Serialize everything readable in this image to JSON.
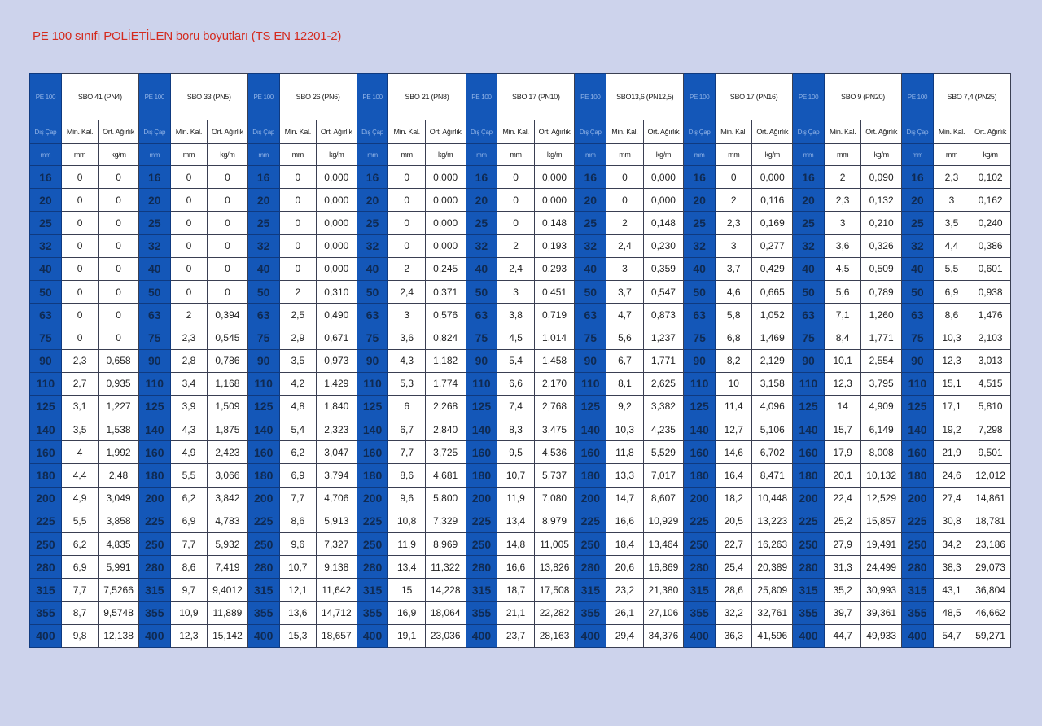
{
  "title": "PE 100 sınıfı POLİETİLEN boru boyutları (TS EN 12201-2)",
  "block_label": "PE 100",
  "col_outer_label": "Dış Çap",
  "col_min_label": "Min. Kal.",
  "col_weight_label": "Ort. Ağırlık",
  "unit_diameter": "mm",
  "unit_thickness": "mm",
  "unit_weight": "kg/m",
  "accent_color": "#1457b8",
  "title_color": "#d42a1e",
  "series": [
    {
      "name": "SBO 41 (PN4)"
    },
    {
      "name": "SBO 33 (PN5)"
    },
    {
      "name": "SBO 26 (PN6)"
    },
    {
      "name": "SBO 21 (PN8)"
    },
    {
      "name": "SBO 17 (PN10)"
    },
    {
      "name": "SBO13,6 (PN12,5)"
    },
    {
      "name": "SBO 17 (PN16)"
    },
    {
      "name": "SBO 9 (PN20)"
    },
    {
      "name": "SBO 7,4 (PN25)"
    }
  ],
  "rows": [
    {
      "d": "16",
      "v": [
        [
          "0",
          "0"
        ],
        [
          "0",
          "0"
        ],
        [
          "0",
          "0,000"
        ],
        [
          "0",
          "0,000"
        ],
        [
          "0",
          "0,000"
        ],
        [
          "0",
          "0,000"
        ],
        [
          "0",
          "0,000"
        ],
        [
          "2",
          "0,090"
        ],
        [
          "2,3",
          "0,102"
        ]
      ]
    },
    {
      "d": "20",
      "v": [
        [
          "0",
          "0"
        ],
        [
          "0",
          "0"
        ],
        [
          "0",
          "0,000"
        ],
        [
          "0",
          "0,000"
        ],
        [
          "0",
          "0,000"
        ],
        [
          "0",
          "0,000"
        ],
        [
          "2",
          "0,116"
        ],
        [
          "2,3",
          "0,132"
        ],
        [
          "3",
          "0,162"
        ]
      ]
    },
    {
      "d": "25",
      "v": [
        [
          "0",
          "0"
        ],
        [
          "0",
          "0"
        ],
        [
          "0",
          "0,000"
        ],
        [
          "0",
          "0,000"
        ],
        [
          "0",
          "0,148"
        ],
        [
          "2",
          "0,148"
        ],
        [
          "2,3",
          "0,169"
        ],
        [
          "3",
          "0,210"
        ],
        [
          "3,5",
          "0,240"
        ]
      ]
    },
    {
      "d": "32",
      "v": [
        [
          "0",
          "0"
        ],
        [
          "0",
          "0"
        ],
        [
          "0",
          "0,000"
        ],
        [
          "0",
          "0,000"
        ],
        [
          "2",
          "0,193"
        ],
        [
          "2,4",
          "0,230"
        ],
        [
          "3",
          "0,277"
        ],
        [
          "3,6",
          "0,326"
        ],
        [
          "4,4",
          "0,386"
        ]
      ]
    },
    {
      "d": "40",
      "v": [
        [
          "0",
          "0"
        ],
        [
          "0",
          "0"
        ],
        [
          "0",
          "0,000"
        ],
        [
          "2",
          "0,245"
        ],
        [
          "2,4",
          "0,293"
        ],
        [
          "3",
          "0,359"
        ],
        [
          "3,7",
          "0,429"
        ],
        [
          "4,5",
          "0,509"
        ],
        [
          "5,5",
          "0,601"
        ]
      ]
    },
    {
      "d": "50",
      "v": [
        [
          "0",
          "0"
        ],
        [
          "0",
          "0"
        ],
        [
          "2",
          "0,310"
        ],
        [
          "2,4",
          "0,371"
        ],
        [
          "3",
          "0,451"
        ],
        [
          "3,7",
          "0,547"
        ],
        [
          "4,6",
          "0,665"
        ],
        [
          "5,6",
          "0,789"
        ],
        [
          "6,9",
          "0,938"
        ]
      ]
    },
    {
      "d": "63",
      "v": [
        [
          "0",
          "0"
        ],
        [
          "2",
          "0,394"
        ],
        [
          "2,5",
          "0,490"
        ],
        [
          "3",
          "0,576"
        ],
        [
          "3,8",
          "0,719"
        ],
        [
          "4,7",
          "0,873"
        ],
        [
          "5,8",
          "1,052"
        ],
        [
          "7,1",
          "1,260"
        ],
        [
          "8,6",
          "1,476"
        ]
      ]
    },
    {
      "d": "75",
      "v": [
        [
          "0",
          "0"
        ],
        [
          "2,3",
          "0,545"
        ],
        [
          "2,9",
          "0,671"
        ],
        [
          "3,6",
          "0,824"
        ],
        [
          "4,5",
          "1,014"
        ],
        [
          "5,6",
          "1,237"
        ],
        [
          "6,8",
          "1,469"
        ],
        [
          "8,4",
          "1,771"
        ],
        [
          "10,3",
          "2,103"
        ]
      ]
    },
    {
      "d": "90",
      "v": [
        [
          "2,3",
          "0,658"
        ],
        [
          "2,8",
          "0,786"
        ],
        [
          "3,5",
          "0,973"
        ],
        [
          "4,3",
          "1,182"
        ],
        [
          "5,4",
          "1,458"
        ],
        [
          "6,7",
          "1,771"
        ],
        [
          "8,2",
          "2,129"
        ],
        [
          "10,1",
          "2,554"
        ],
        [
          "12,3",
          "3,013"
        ]
      ]
    },
    {
      "d": "110",
      "v": [
        [
          "2,7",
          "0,935"
        ],
        [
          "3,4",
          "1,168"
        ],
        [
          "4,2",
          "1,429"
        ],
        [
          "5,3",
          "1,774"
        ],
        [
          "6,6",
          "2,170"
        ],
        [
          "8,1",
          "2,625"
        ],
        [
          "10",
          "3,158"
        ],
        [
          "12,3",
          "3,795"
        ],
        [
          "15,1",
          "4,515"
        ]
      ]
    },
    {
      "d": "125",
      "v": [
        [
          "3,1",
          "1,227"
        ],
        [
          "3,9",
          "1,509"
        ],
        [
          "4,8",
          "1,840"
        ],
        [
          "6",
          "2,268"
        ],
        [
          "7,4",
          "2,768"
        ],
        [
          "9,2",
          "3,382"
        ],
        [
          "11,4",
          "4,096"
        ],
        [
          "14",
          "4,909"
        ],
        [
          "17,1",
          "5,810"
        ]
      ]
    },
    {
      "d": "140",
      "v": [
        [
          "3,5",
          "1,538"
        ],
        [
          "4,3",
          "1,875"
        ],
        [
          "5,4",
          "2,323"
        ],
        [
          "6,7",
          "2,840"
        ],
        [
          "8,3",
          "3,475"
        ],
        [
          "10,3",
          "4,235"
        ],
        [
          "12,7",
          "5,106"
        ],
        [
          "15,7",
          "6,149"
        ],
        [
          "19,2",
          "7,298"
        ]
      ]
    },
    {
      "d": "160",
      "v": [
        [
          "4",
          "1,992"
        ],
        [
          "4,9",
          "2,423"
        ],
        [
          "6,2",
          "3,047"
        ],
        [
          "7,7",
          "3,725"
        ],
        [
          "9,5",
          "4,536"
        ],
        [
          "11,8",
          "5,529"
        ],
        [
          "14,6",
          "6,702"
        ],
        [
          "17,9",
          "8,008"
        ],
        [
          "21,9",
          "9,501"
        ]
      ]
    },
    {
      "d": "180",
      "v": [
        [
          "4,4",
          "2,48"
        ],
        [
          "5,5",
          "3,066"
        ],
        [
          "6,9",
          "3,794"
        ],
        [
          "8,6",
          "4,681"
        ],
        [
          "10,7",
          "5,737"
        ],
        [
          "13,3",
          "7,017"
        ],
        [
          "16,4",
          "8,471"
        ],
        [
          "20,1",
          "10,132"
        ],
        [
          "24,6",
          "12,012"
        ]
      ]
    },
    {
      "d": "200",
      "v": [
        [
          "4,9",
          "3,049"
        ],
        [
          "6,2",
          "3,842"
        ],
        [
          "7,7",
          "4,706"
        ],
        [
          "9,6",
          "5,800"
        ],
        [
          "11,9",
          "7,080"
        ],
        [
          "14,7",
          "8,607"
        ],
        [
          "18,2",
          "10,448"
        ],
        [
          "22,4",
          "12,529"
        ],
        [
          "27,4",
          "14,861"
        ]
      ]
    },
    {
      "d": "225",
      "v": [
        [
          "5,5",
          "3,858"
        ],
        [
          "6,9",
          "4,783"
        ],
        [
          "8,6",
          "5,913"
        ],
        [
          "10,8",
          "7,329"
        ],
        [
          "13,4",
          "8,979"
        ],
        [
          "16,6",
          "10,929"
        ],
        [
          "20,5",
          "13,223"
        ],
        [
          "25,2",
          "15,857"
        ],
        [
          "30,8",
          "18,781"
        ]
      ]
    },
    {
      "d": "250",
      "v": [
        [
          "6,2",
          "4,835"
        ],
        [
          "7,7",
          "5,932"
        ],
        [
          "9,6",
          "7,327"
        ],
        [
          "11,9",
          "8,969"
        ],
        [
          "14,8",
          "11,005"
        ],
        [
          "18,4",
          "13,464"
        ],
        [
          "22,7",
          "16,263"
        ],
        [
          "27,9",
          "19,491"
        ],
        [
          "34,2",
          "23,186"
        ]
      ]
    },
    {
      "d": "280",
      "v": [
        [
          "6,9",
          "5,991"
        ],
        [
          "8,6",
          "7,419"
        ],
        [
          "10,7",
          "9,138"
        ],
        [
          "13,4",
          "11,322"
        ],
        [
          "16,6",
          "13,826"
        ],
        [
          "20,6",
          "16,869"
        ],
        [
          "25,4",
          "20,389"
        ],
        [
          "31,3",
          "24,499"
        ],
        [
          "38,3",
          "29,073"
        ]
      ]
    },
    {
      "d": "315",
      "v": [
        [
          "7,7",
          "7,5266"
        ],
        [
          "9,7",
          "9,4012"
        ],
        [
          "12,1",
          "11,642"
        ],
        [
          "15",
          "14,228"
        ],
        [
          "18,7",
          "17,508"
        ],
        [
          "23,2",
          "21,380"
        ],
        [
          "28,6",
          "25,809"
        ],
        [
          "35,2",
          "30,993"
        ],
        [
          "43,1",
          "36,804"
        ]
      ]
    },
    {
      "d": "355",
      "v": [
        [
          "8,7",
          "9,5748"
        ],
        [
          "10,9",
          "11,889"
        ],
        [
          "13,6",
          "14,712"
        ],
        [
          "16,9",
          "18,064"
        ],
        [
          "21,1",
          "22,282"
        ],
        [
          "26,1",
          "27,106"
        ],
        [
          "32,2",
          "32,761"
        ],
        [
          "39,7",
          "39,361"
        ],
        [
          "48,5",
          "46,662"
        ]
      ]
    },
    {
      "d": "400",
      "v": [
        [
          "9,8",
          "12,138"
        ],
        [
          "12,3",
          "15,142"
        ],
        [
          "15,3",
          "18,657"
        ],
        [
          "19,1",
          "23,036"
        ],
        [
          "23,7",
          "28,163"
        ],
        [
          "29,4",
          "34,376"
        ],
        [
          "36,3",
          "41,596"
        ],
        [
          "44,7",
          "49,933"
        ],
        [
          "54,7",
          "59,271"
        ]
      ]
    }
  ]
}
